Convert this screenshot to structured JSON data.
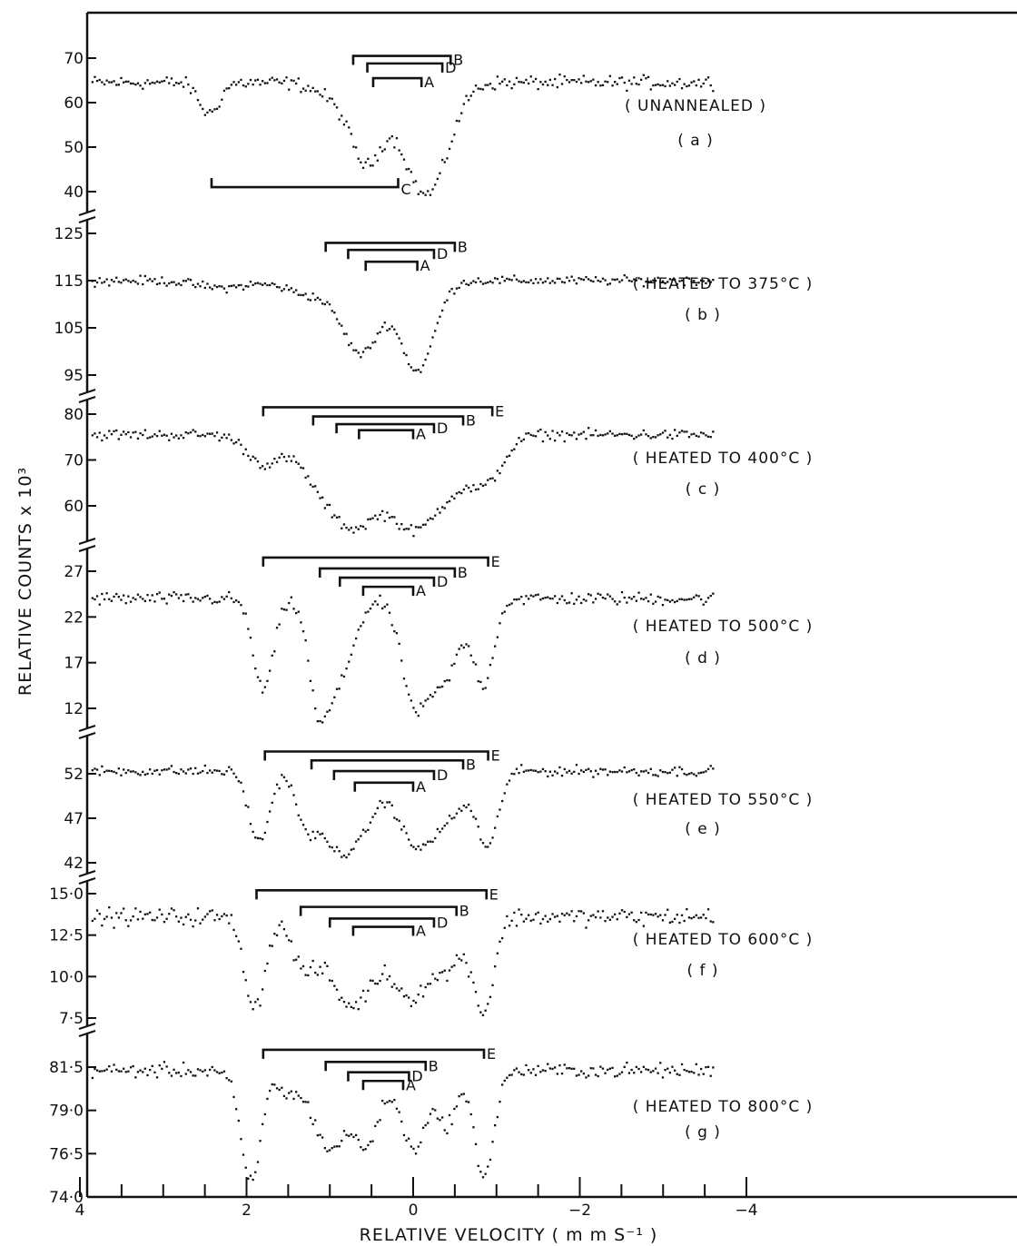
{
  "chart_data": {
    "type": "scatter",
    "xlabel": "RELATIVE  VELOCITY ( m m S⁻¹ )",
    "ylabel": "RELATIVE  COUNTS x 10³",
    "xlim": [
      4,
      -4.1
    ],
    "x_ticks": [
      {
        "value": 4,
        "label": "4"
      },
      {
        "value": 2,
        "label": "2"
      },
      {
        "value": 0,
        "label": "0"
      },
      {
        "value": -2,
        "label": "−2"
      },
      {
        "value": -4,
        "label": "−4"
      }
    ],
    "marker_color": "#111111",
    "panels": [
      {
        "id": "a",
        "title": "( UNANNEALED )",
        "letter": "( a )",
        "ylim": [
          36,
          76
        ],
        "y_ticks": [
          {
            "value": 70,
            "label": "70"
          },
          {
            "value": 60,
            "label": "60"
          },
          {
            "value": 50,
            "label": "50"
          },
          {
            "value": 40,
            "label": "40"
          }
        ],
        "baseline": 64.5,
        "dips": [
          [
            2.45,
            7,
            0.12
          ],
          [
            0.55,
            16,
            0.18
          ],
          [
            -0.1,
            22,
            0.25
          ],
          [
            0.85,
            4,
            0.25
          ],
          [
            -0.35,
            6,
            0.2
          ]
        ],
        "noise": 1.3,
        "brackets": [
          {
            "label": "B",
            "left": 0.72,
            "right": -0.45,
            "level": 70.5
          },
          {
            "label": "D",
            "left": 0.55,
            "right": -0.35,
            "level": 68.8
          },
          {
            "label": "A",
            "left": 0.48,
            "right": -0.1,
            "level": 65.5
          },
          {
            "label": "C",
            "left": 2.42,
            "right": 0.18,
            "level": 41.0,
            "down": true
          }
        ]
      },
      {
        "id": "b",
        "title": "( HEATED  TO  375°C )",
        "letter": "( b )",
        "ylim": [
          91,
          127
        ],
        "y_ticks": [
          {
            "value": 125,
            "label": "125"
          },
          {
            "value": 115,
            "label": "115"
          },
          {
            "value": 105,
            "label": "105"
          },
          {
            "value": 95,
            "label": "95"
          }
        ],
        "baseline": 115,
        "dips": [
          [
            0.62,
            15,
            0.22
          ],
          [
            -0.05,
            19,
            0.2
          ],
          [
            1.2,
            3,
            0.3
          ],
          [
            2.3,
            1.5,
            0.3
          ]
        ],
        "noise": 0.8,
        "brackets": [
          {
            "label": "B",
            "left": 1.05,
            "right": -0.5,
            "level": 123
          },
          {
            "label": "D",
            "left": 0.78,
            "right": -0.25,
            "level": 121.5
          },
          {
            "label": "A",
            "left": 0.57,
            "right": -0.05,
            "level": 119
          }
        ]
      },
      {
        "id": "c",
        "title": "( HEATED  TO  400°C )",
        "letter": "( c )",
        "ylim": [
          55,
          82
        ],
        "y_ticks": [
          {
            "value": 80,
            "label": "80"
          },
          {
            "value": 70,
            "label": "70"
          },
          {
            "value": 60,
            "label": "60"
          }
        ],
        "baseline": 75.5,
        "dips": [
          [
            1.8,
            6,
            0.2
          ],
          [
            1.0,
            13,
            0.3
          ],
          [
            0.6,
            13,
            0.25
          ],
          [
            0.05,
            16,
            0.25
          ],
          [
            -0.4,
            11,
            0.3
          ],
          [
            -0.9,
            8,
            0.2
          ]
        ],
        "noise": 1.0,
        "brackets": [
          {
            "label": "E",
            "left": 1.8,
            "right": -0.95,
            "level": 81.5
          },
          {
            "label": "B",
            "left": 1.2,
            "right": -0.6,
            "level": 79.5
          },
          {
            "label": "D",
            "left": 0.92,
            "right": -0.25,
            "level": 77.8
          },
          {
            "label": "A",
            "left": 0.65,
            "right": 0.0,
            "level": 76.5
          }
        ]
      },
      {
        "id": "d",
        "title": "( HEATED  TO  500°C )",
        "letter": "( d )",
        "ylim": [
          10,
          29
        ],
        "y_ticks": [
          {
            "value": 27,
            "label": "27"
          },
          {
            "value": 22,
            "label": "22"
          },
          {
            "value": 17,
            "label": "17"
          },
          {
            "value": 12,
            "label": "12"
          }
        ],
        "baseline": 24,
        "dips": [
          [
            1.8,
            10,
            0.12
          ],
          [
            1.15,
            7,
            0.1
          ],
          [
            0.95,
            10,
            0.2
          ],
          [
            0.0,
            10,
            0.15
          ],
          [
            -0.35,
            9,
            0.2
          ],
          [
            -0.85,
            9,
            0.12
          ]
        ],
        "noise": 0.6,
        "brackets": [
          {
            "label": "E",
            "left": 1.8,
            "right": -0.9,
            "level": 28.5
          },
          {
            "label": "B",
            "left": 1.12,
            "right": -0.5,
            "level": 27.3
          },
          {
            "label": "D",
            "left": 0.88,
            "right": -0.25,
            "level": 26.3
          },
          {
            "label": "A",
            "left": 0.6,
            "right": 0.0,
            "level": 25.3
          }
        ]
      },
      {
        "id": "e",
        "title": "( HEATED  TO  550°C )",
        "letter": "( e )",
        "ylim": [
          41,
          55
        ],
        "y_ticks": [
          {
            "value": 52,
            "label": "52"
          },
          {
            "value": 47,
            "label": "47"
          },
          {
            "value": 42,
            "label": "42"
          }
        ],
        "baseline": 52.3,
        "dips": [
          [
            1.85,
            8,
            0.12
          ],
          [
            1.3,
            4,
            0.1
          ],
          [
            1.0,
            7,
            0.22
          ],
          [
            0.65,
            6,
            0.2
          ],
          [
            0.0,
            7,
            0.2
          ],
          [
            -0.4,
            5,
            0.25
          ],
          [
            -0.9,
            8,
            0.12
          ]
        ],
        "noise": 0.5,
        "brackets": [
          {
            "label": "E",
            "left": 1.78,
            "right": -0.9,
            "level": 54.5
          },
          {
            "label": "B",
            "left": 1.22,
            "right": -0.6,
            "level": 53.5
          },
          {
            "label": "D",
            "left": 0.95,
            "right": -0.25,
            "level": 52.3
          },
          {
            "label": "A",
            "left": 0.7,
            "right": 0.0,
            "level": 51.0
          }
        ]
      },
      {
        "id": "f",
        "title": "( HEATED  TO  600°C )",
        "letter": "( f )",
        "ylim": [
          6.8,
          15.6
        ],
        "y_ticks": [
          {
            "value": 15.0,
            "label": "15·0"
          },
          {
            "value": 12.5,
            "label": "12·5"
          },
          {
            "value": 10.0,
            "label": "10·0"
          },
          {
            "value": 7.5,
            "label": "7·5"
          }
        ],
        "baseline": 13.6,
        "dips": [
          [
            1.9,
            5.5,
            0.12
          ],
          [
            1.3,
            3,
            0.15
          ],
          [
            0.85,
            4,
            0.2
          ],
          [
            0.55,
            3,
            0.2
          ],
          [
            0.05,
            4.5,
            0.2
          ],
          [
            -0.4,
            3,
            0.2
          ],
          [
            -0.85,
            5.5,
            0.12
          ]
        ],
        "noise": 0.45,
        "brackets": [
          {
            "label": "E",
            "left": 1.88,
            "right": -0.88,
            "level": 15.2
          },
          {
            "label": "B",
            "left": 1.35,
            "right": -0.52,
            "level": 14.2
          },
          {
            "label": "D",
            "left": 1.0,
            "right": -0.25,
            "level": 13.5
          },
          {
            "label": "A",
            "left": 0.72,
            "right": 0.0,
            "level": 13.0
          }
        ]
      },
      {
        "id": "g",
        "title": "( HEATED  TO  800°C )",
        "letter": "( g )",
        "ylim": [
          73.6,
          82.6
        ],
        "y_ticks": [
          {
            "value": 81.5,
            "label": "81·5"
          },
          {
            "value": 79.0,
            "label": "79·0"
          },
          {
            "value": 76.5,
            "label": "76·5"
          },
          {
            "value": 74.0,
            "label": "74·0"
          }
        ],
        "baseline": 81.3,
        "dips": [
          [
            1.95,
            6.5,
            0.12
          ],
          [
            1.5,
            1.2,
            0.12
          ],
          [
            1.0,
            4.5,
            0.2
          ],
          [
            0.55,
            4,
            0.15
          ],
          [
            0.0,
            4.5,
            0.15
          ],
          [
            -0.4,
            3,
            0.12
          ],
          [
            -0.85,
            6,
            0.12
          ]
        ],
        "noise": 0.35,
        "brackets": [
          {
            "label": "E",
            "left": 1.8,
            "right": -0.85,
            "level": 82.5
          },
          {
            "label": "B",
            "left": 1.05,
            "right": -0.15,
            "level": 81.8
          },
          {
            "label": "D",
            "left": 0.78,
            "right": 0.05,
            "level": 81.2
          },
          {
            "label": "A",
            "left": 0.6,
            "right": 0.12,
            "level": 80.7
          }
        ]
      }
    ]
  }
}
